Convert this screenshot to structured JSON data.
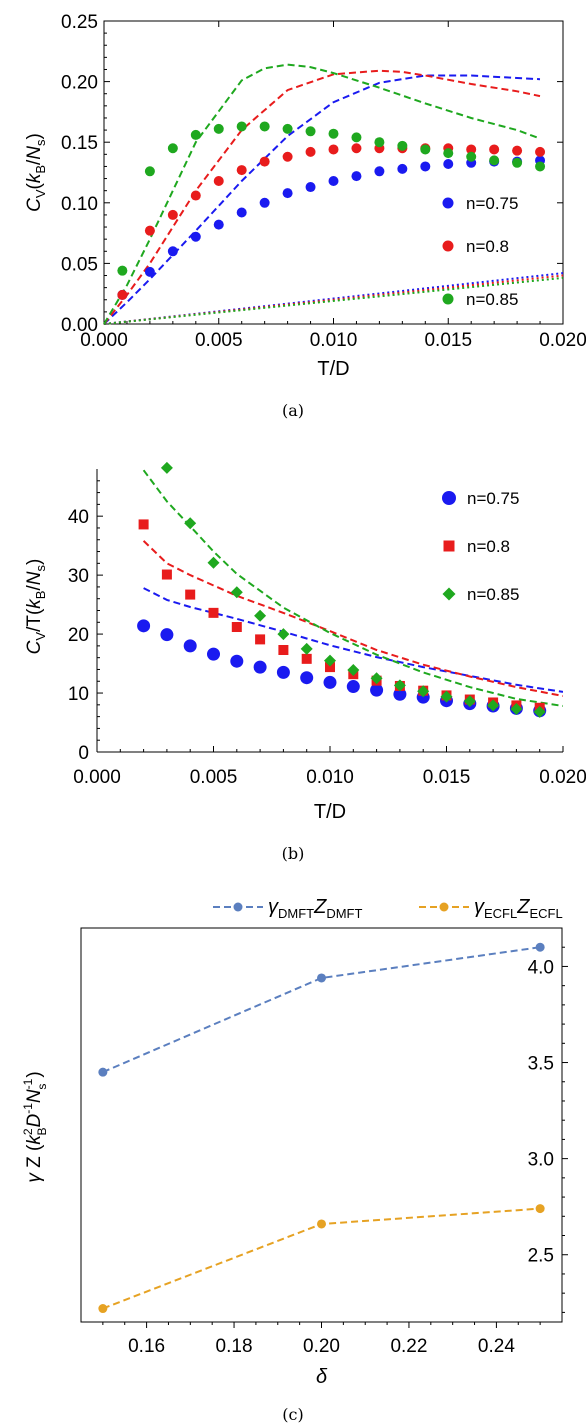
{
  "chart_data": [
    {
      "panel": "(a)",
      "type": "scatter",
      "title": "",
      "xlabel": "T/D",
      "ylabel": "C_V(k_B/N_s)",
      "xlim": [
        0,
        0.02
      ],
      "ylim": [
        0,
        0.25
      ],
      "xticks": [
        "0.000",
        "0.005",
        "0.010",
        "0.015",
        "0.020"
      ],
      "yticks": [
        "0.00",
        "0.05",
        "0.10",
        "0.15",
        "0.20",
        "0.25"
      ],
      "legend_position": "right",
      "series": [
        {
          "name": "n=0.75",
          "color": "#1a1af0",
          "marker": "circle",
          "x": [
            0.0008,
            0.002,
            0.003,
            0.004,
            0.005,
            0.006,
            0.007,
            0.008,
            0.009,
            0.01,
            0.011,
            0.012,
            0.013,
            0.014,
            0.015,
            0.016,
            0.017,
            0.018,
            0.019
          ],
          "y": [
            0.024,
            0.043,
            0.06,
            0.072,
            0.082,
            0.092,
            0.1,
            0.108,
            0.113,
            0.118,
            0.122,
            0.126,
            0.128,
            0.13,
            0.132,
            0.133,
            0.134,
            0.134,
            0.135
          ]
        },
        {
          "name": "n=0.8",
          "color": "#e81c1c",
          "marker": "circle",
          "x": [
            0.0008,
            0.002,
            0.003,
            0.004,
            0.005,
            0.006,
            0.007,
            0.008,
            0.009,
            0.01,
            0.011,
            0.012,
            0.013,
            0.014,
            0.015,
            0.016,
            0.017,
            0.018,
            0.019
          ],
          "y": [
            0.024,
            0.077,
            0.09,
            0.106,
            0.118,
            0.127,
            0.134,
            0.138,
            0.142,
            0.144,
            0.145,
            0.145,
            0.145,
            0.145,
            0.145,
            0.144,
            0.144,
            0.143,
            0.142
          ]
        },
        {
          "name": "n=0.85",
          "color": "#1fa81f",
          "marker": "circle",
          "x": [
            0.0008,
            0.002,
            0.003,
            0.004,
            0.005,
            0.006,
            0.007,
            0.008,
            0.009,
            0.01,
            0.011,
            0.012,
            0.013,
            0.014,
            0.015,
            0.016,
            0.017,
            0.018,
            0.019
          ],
          "y": [
            0.044,
            0.126,
            0.145,
            0.156,
            0.161,
            0.163,
            0.163,
            0.161,
            0.159,
            0.157,
            0.154,
            0.15,
            0.147,
            0.144,
            0.141,
            0.138,
            0.135,
            0.133,
            0.13
          ]
        }
      ],
      "dashed_lines": [
        {
          "color": "#1a1af0",
          "x": [
            0,
            0.001,
            0.002,
            0.004,
            0.006,
            0.008,
            0.01,
            0.012,
            0.014,
            0.016,
            0.018,
            0.019
          ],
          "y": [
            0,
            0.018,
            0.037,
            0.077,
            0.118,
            0.155,
            0.183,
            0.199,
            0.205,
            0.205,
            0.203,
            0.202
          ]
        },
        {
          "color": "#e81c1c",
          "x": [
            0,
            0.001,
            0.002,
            0.004,
            0.006,
            0.008,
            0.01,
            0.012,
            0.013,
            0.014,
            0.016,
            0.018,
            0.019
          ],
          "y": [
            0,
            0.024,
            0.05,
            0.11,
            0.16,
            0.193,
            0.206,
            0.209,
            0.208,
            0.205,
            0.198,
            0.192,
            0.188
          ]
        },
        {
          "color": "#1fa81f",
          "x": [
            0,
            0.001,
            0.002,
            0.004,
            0.006,
            0.007,
            0.008,
            0.009,
            0.01,
            0.012,
            0.014,
            0.016,
            0.018,
            0.019
          ],
          "y": [
            0,
            0.032,
            0.07,
            0.15,
            0.201,
            0.211,
            0.214,
            0.212,
            0.207,
            0.195,
            0.182,
            0.17,
            0.16,
            0.153
          ]
        }
      ],
      "dotted_lines": [
        {
          "color": "#1a1af0",
          "x": [
            0,
            0.02
          ],
          "y": [
            0,
            0.042
          ]
        },
        {
          "color": "#e81c1c",
          "x": [
            0,
            0.02
          ],
          "y": [
            0,
            0.04
          ]
        },
        {
          "color": "#1fa81f",
          "x": [
            0,
            0.02
          ],
          "y": [
            0,
            0.038
          ]
        }
      ]
    },
    {
      "panel": "(b)",
      "type": "scatter",
      "title": "",
      "xlabel": "T/D",
      "ylabel": "C_V/T(k_B/N_s)",
      "xlim": [
        0,
        0.02
      ],
      "ylim": [
        0,
        48
      ],
      "xticks": [
        "0.000",
        "0.005",
        "0.010",
        "0.015",
        "0.020"
      ],
      "yticks": [
        "0",
        "10",
        "20",
        "30",
        "40"
      ],
      "legend_position": "top-right",
      "series": [
        {
          "name": "n=0.75",
          "color": "#1a1af0",
          "marker": "circle",
          "x": [
            0.002,
            0.003,
            0.004,
            0.005,
            0.006,
            0.007,
            0.008,
            0.009,
            0.01,
            0.011,
            0.012,
            0.013,
            0.014,
            0.015,
            0.016,
            0.017,
            0.018,
            0.019
          ],
          "y": [
            21.4,
            19.9,
            18.0,
            16.6,
            15.4,
            14.4,
            13.5,
            12.6,
            11.8,
            11.1,
            10.5,
            9.8,
            9.3,
            8.7,
            8.2,
            7.8,
            7.4,
            7.0
          ]
        },
        {
          "name": "n=0.8",
          "color": "#e81c1c",
          "marker": "square",
          "x": [
            0.002,
            0.003,
            0.004,
            0.005,
            0.006,
            0.007,
            0.008,
            0.009,
            0.01,
            0.011,
            0.012,
            0.013,
            0.014,
            0.015,
            0.016,
            0.017,
            0.018,
            0.019
          ],
          "y": [
            38.6,
            30.1,
            26.7,
            23.6,
            21.2,
            19.1,
            17.3,
            15.8,
            14.4,
            13.2,
            12.1,
            11.2,
            10.4,
            9.6,
            8.9,
            8.4,
            7.9,
            7.5
          ]
        },
        {
          "name": "n=0.85",
          "color": "#1fa81f",
          "marker": "diamond",
          "x": [
            0.003,
            0.004,
            0.005,
            0.006,
            0.007,
            0.008,
            0.009,
            0.01,
            0.011,
            0.012,
            0.013,
            0.014,
            0.015,
            0.016,
            0.017,
            0.018,
            0.019
          ],
          "y": [
            48.2,
            38.8,
            32.1,
            27.1,
            23.1,
            20.0,
            17.5,
            15.5,
            13.9,
            12.5,
            11.3,
            10.3,
            9.4,
            8.6,
            7.9,
            7.3,
            6.8
          ]
        }
      ],
      "dashed_lines": [
        {
          "color": "#1a1af0",
          "x": [
            0.002,
            0.003,
            0.004,
            0.006,
            0.008,
            0.01,
            0.012,
            0.014,
            0.016,
            0.018,
            0.02
          ],
          "y": [
            27.8,
            25.8,
            24.6,
            22.6,
            20.4,
            18.1,
            16.1,
            14.4,
            12.9,
            11.4,
            10.2
          ]
        },
        {
          "color": "#e81c1c",
          "x": [
            0.002,
            0.003,
            0.004,
            0.006,
            0.008,
            0.01,
            0.012,
            0.014,
            0.016,
            0.018,
            0.02
          ],
          "y": [
            35.8,
            32.0,
            30.0,
            26.5,
            23.6,
            20.5,
            17.3,
            14.8,
            12.8,
            11.0,
            9.5
          ]
        },
        {
          "color": "#1fa81f",
          "x": [
            0.002,
            0.003,
            0.004,
            0.005,
            0.006,
            0.008,
            0.01,
            0.012,
            0.014,
            0.016,
            0.018,
            0.02
          ],
          "y": [
            47.8,
            42.5,
            38.3,
            34.0,
            30.2,
            24.5,
            20.2,
            16.5,
            13.5,
            11.0,
            9.0,
            7.8
          ]
        }
      ]
    },
    {
      "panel": "(c)",
      "type": "line",
      "title": "",
      "xlabel": "δ",
      "ylabel": "γ Z (k_B^2 D^-1 N_s^-1)",
      "xlim": [
        0.145,
        0.255
      ],
      "ylim": [
        2.15,
        4.2
      ],
      "xticks": [
        "0.16",
        "0.18",
        "0.20",
        "0.22",
        "0.24"
      ],
      "yticks": [
        "2.5",
        "3.0",
        "3.5",
        "4.0"
      ],
      "legend_position": "top",
      "x": [
        0.15,
        0.2,
        0.25
      ],
      "series": [
        {
          "name": "γ_DMFT Z_DMFT",
          "color": "#5b7fbf",
          "values": [
            3.45,
            3.94,
            4.1
          ]
        },
        {
          "name": "γ_ECFL Z_ECFL",
          "color": "#e6a223",
          "values": [
            2.22,
            2.66,
            2.74
          ]
        }
      ]
    }
  ]
}
